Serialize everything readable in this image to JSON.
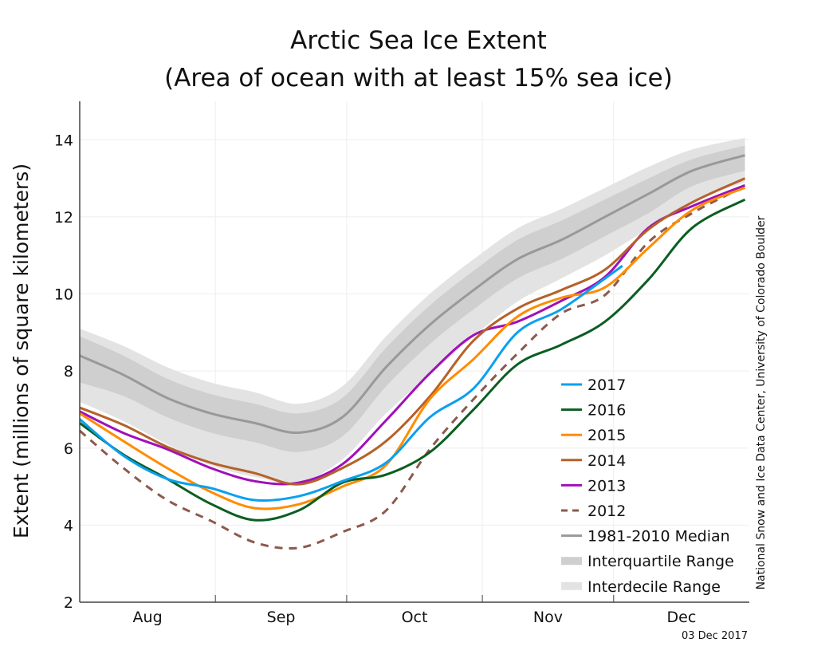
{
  "chart_data": {
    "type": "line",
    "title": "Arctic Sea Ice Extent",
    "subtitle": "(Area of ocean with at least 15% sea ice)",
    "ylabel": "Extent (millions of square kilometers)",
    "xlabel": "",
    "ylim": [
      2,
      15
    ],
    "yticks": [
      2,
      4,
      6,
      8,
      10,
      12,
      14
    ],
    "xrange": [
      "Aug 1",
      "Dec 31"
    ],
    "xtick_labels": [
      "Aug",
      "Sep",
      "Oct",
      "Nov",
      "Dec"
    ],
    "grid": true,
    "legend_position": "bottom-right",
    "date_stamp": "03 Dec 2017",
    "source": "National Snow and Ice Data Center, University of Colorado Boulder",
    "x": [
      "Aug 1",
      "Aug 11",
      "Aug 21",
      "Aug 31",
      "Sep 10",
      "Sep 20",
      "Sep 30",
      "Oct 10",
      "Oct 20",
      "Oct 30",
      "Nov 9",
      "Nov 19",
      "Nov 29",
      "Dec 9",
      "Dec 19",
      "Dec 31"
    ],
    "bands": [
      {
        "name": "Interdecile Range",
        "color": "#e3e3e3",
        "low": [
          7.2,
          6.7,
          6.1,
          5.55,
          5.25,
          5.1,
          5.7,
          6.9,
          7.9,
          8.9,
          9.8,
          10.4,
          11.0,
          11.7,
          12.4,
          12.9
        ],
        "high": [
          9.1,
          8.65,
          8.1,
          7.7,
          7.45,
          7.15,
          7.6,
          8.9,
          10.0,
          10.9,
          11.7,
          12.2,
          12.75,
          13.3,
          13.75,
          14.05
        ]
      },
      {
        "name": "Interquartile Range",
        "color": "#cfcfcf",
        "low": [
          7.7,
          7.35,
          6.8,
          6.4,
          6.15,
          5.9,
          6.3,
          7.6,
          8.7,
          9.6,
          10.4,
          10.9,
          11.5,
          12.1,
          12.8,
          13.2
        ],
        "high": [
          8.9,
          8.4,
          7.8,
          7.4,
          7.15,
          6.9,
          7.3,
          8.6,
          9.7,
          10.6,
          11.4,
          11.9,
          12.45,
          13.0,
          13.5,
          13.85
        ]
      }
    ],
    "series": [
      {
        "name": "2017",
        "color": "#0aa0f0",
        "dashed": false,
        "x": [
          "Aug 1",
          "Aug 11",
          "Aug 21",
          "Aug 31",
          "Sep 10",
          "Sep 20",
          "Sep 30",
          "Oct 10",
          "Oct 20",
          "Oct 30",
          "Nov 9",
          "Nov 19",
          "Nov 29",
          "Dec 3"
        ],
        "values": [
          6.75,
          5.8,
          5.2,
          4.96,
          4.65,
          4.75,
          5.14,
          5.62,
          6.8,
          7.55,
          9.0,
          9.6,
          10.4,
          10.73
        ]
      },
      {
        "name": "2016",
        "color": "#0b5e22",
        "dashed": false,
        "values": [
          6.65,
          5.83,
          5.2,
          4.55,
          4.13,
          4.38,
          5.1,
          5.31,
          5.89,
          7.0,
          8.17,
          8.68,
          9.28,
          10.38,
          11.72,
          12.45
        ]
      },
      {
        "name": "2015",
        "color": "#ff8c00",
        "dashed": false,
        "values": [
          6.9,
          6.18,
          5.48,
          4.86,
          4.44,
          4.54,
          5.0,
          5.56,
          7.27,
          8.31,
          9.41,
          9.9,
          10.17,
          11.2,
          12.18,
          12.76
        ]
      },
      {
        "name": "2014",
        "color": "#b5612a",
        "dashed": false,
        "values": [
          7.05,
          6.6,
          6.03,
          5.62,
          5.35,
          5.06,
          5.48,
          6.18,
          7.34,
          8.79,
          9.62,
          10.1,
          10.63,
          11.68,
          12.38,
          13.0
        ]
      },
      {
        "name": "2013",
        "color": "#a010b8",
        "dashed": false,
        "values": [
          6.95,
          6.39,
          5.97,
          5.48,
          5.14,
          5.1,
          5.58,
          6.72,
          7.94,
          8.93,
          9.28,
          9.82,
          10.44,
          11.72,
          12.28,
          12.82
        ]
      },
      {
        "name": "2012",
        "color": "#8c5a4e",
        "dashed": true,
        "values": [
          6.45,
          5.48,
          4.65,
          4.11,
          3.55,
          3.41,
          3.82,
          4.38,
          5.97,
          7.27,
          8.45,
          9.49,
          9.97,
          11.35,
          12.1,
          12.8
        ]
      },
      {
        "name": "1981-2010 Median",
        "color": "#999999",
        "dashed": false,
        "values": [
          8.4,
          7.9,
          7.3,
          6.9,
          6.65,
          6.4,
          6.8,
          8.1,
          9.2,
          10.1,
          10.9,
          11.4,
          12.0,
          12.6,
          13.2,
          13.6
        ]
      }
    ]
  }
}
